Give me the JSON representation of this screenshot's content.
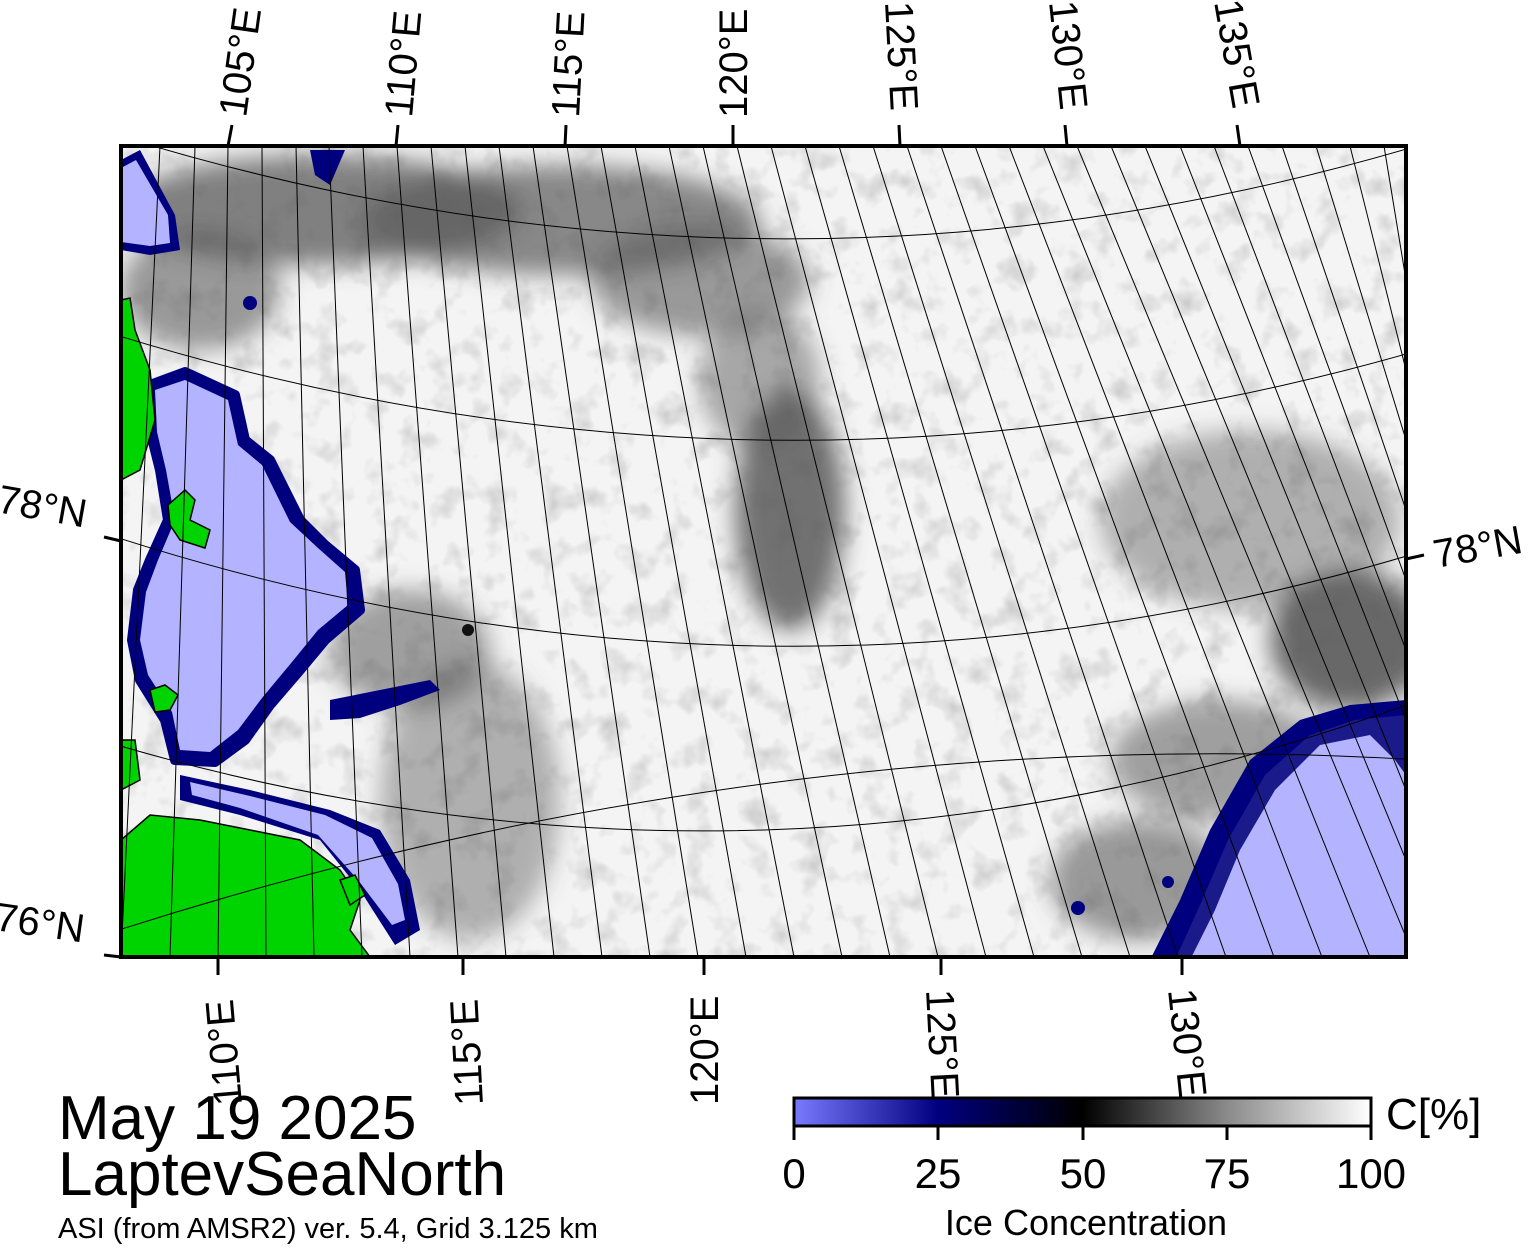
{
  "title": {
    "date": "May 19 2025",
    "region": "LaptevSeaNorth",
    "subtitle": "ASI (from AMSR2) ver. 5.4,  Grid 3.125 km"
  },
  "map": {
    "top_lon_labels": [
      "105°E",
      "110°E",
      "115°E",
      "120°E",
      "125°E",
      "130°E",
      "135°E"
    ],
    "bottom_lon_labels": [
      "110°E",
      "115°E",
      "120°E",
      "125°E",
      "130°E"
    ],
    "lat_labels_left": [
      "78°N",
      "76°N"
    ],
    "lat_labels_right": [
      "78°N"
    ],
    "colors": {
      "land": "#00d400",
      "open_water": "#b3b3ff",
      "ice_edge": "#00007f",
      "ice_dark": "#2a2a2a",
      "ice_high": "#ffffff"
    }
  },
  "legend": {
    "unit": "C[%]",
    "title": "Ice Concentration",
    "ticks": [
      "0",
      "25",
      "50",
      "75",
      "100"
    ],
    "colors": [
      "#7a7aff",
      "#00007f",
      "#000000",
      "#8a8a8a",
      "#ffffff"
    ]
  }
}
